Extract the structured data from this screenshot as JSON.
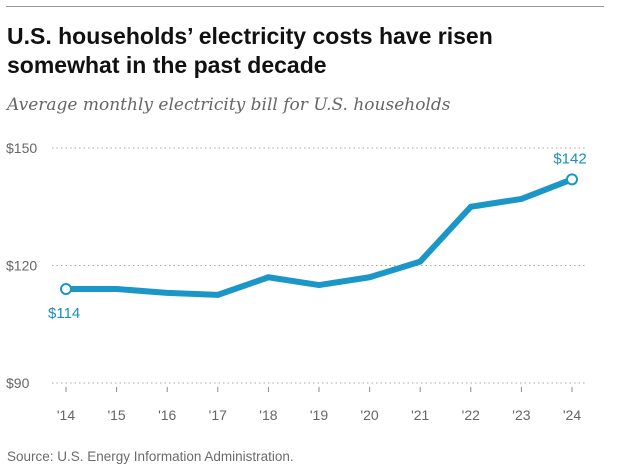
{
  "header": {
    "title": "U.S. households’ electricity costs have risen somewhat in the past decade",
    "subtitle": "Average monthly electricity bill for U.S. households"
  },
  "footer": {
    "source": "Source: U.S. Energy Information Administration."
  },
  "colors": {
    "line": "#1a97c6",
    "label": "#1a8fbd",
    "grid": "#a8a8a8",
    "axis_text": "#666666"
  },
  "chart_data": {
    "type": "line",
    "title": "Average monthly electricity bill for U.S. households",
    "xlabel": "",
    "ylabel": "",
    "categories": [
      "'14",
      "'15",
      "'16",
      "'17",
      "'18",
      "'19",
      "'20",
      "'21",
      "'22",
      "'23",
      "'24"
    ],
    "series": [
      {
        "name": "Average monthly electricity bill",
        "values": [
          114,
          114,
          113,
          112.5,
          117,
          115,
          117,
          121,
          135,
          137,
          142
        ]
      }
    ],
    "ylim": [
      90,
      150
    ],
    "yticks": [
      90,
      120,
      150
    ],
    "ytick_labels": [
      "$90",
      "$120",
      "$150"
    ],
    "grid": "horizontal dotted",
    "annotations": [
      {
        "index": 0,
        "label": "$114"
      },
      {
        "index": 10,
        "label": "$142"
      }
    ]
  }
}
